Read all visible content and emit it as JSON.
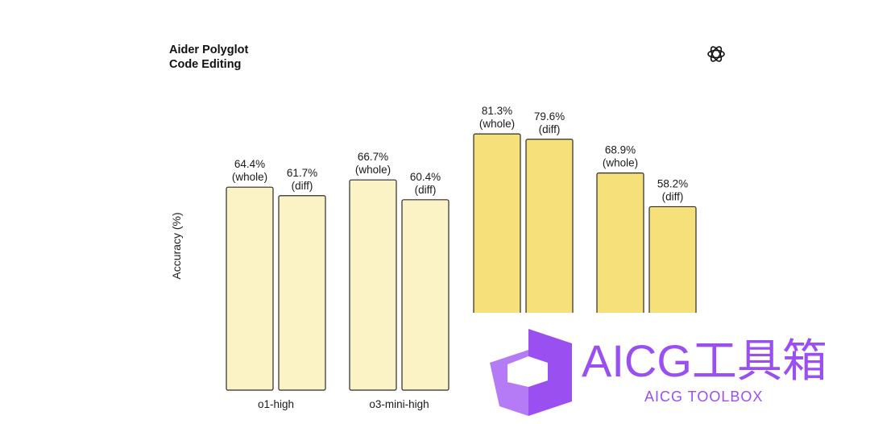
{
  "chart_data": {
    "type": "bar",
    "title": [
      "Aider Polyglot",
      "Code Editing"
    ],
    "ylabel": "Accuracy (%)",
    "ylim": [
      0,
      100
    ],
    "groups": [
      {
        "category": "o1-high",
        "bars": [
          {
            "value": 64.4,
            "label": [
              "64.4%",
              "(whole)"
            ],
            "color": "#fbf3c6"
          },
          {
            "value": 61.7,
            "label": [
              "61.7%",
              "(diff)"
            ],
            "color": "#fbf3c6"
          }
        ]
      },
      {
        "category": "o3-mini-high",
        "bars": [
          {
            "value": 66.7,
            "label": [
              "66.7%",
              "(whole)"
            ],
            "color": "#fbf3c6"
          },
          {
            "value": 60.4,
            "label": [
              "60.4%",
              "(diff)"
            ],
            "color": "#fbf3c6"
          }
        ]
      },
      {
        "category": "",
        "bars": [
          {
            "value": 81.3,
            "label": [
              "81.3%",
              "(whole)"
            ],
            "color": "#f6e07a"
          },
          {
            "value": 79.6,
            "label": [
              "79.6%",
              "(diff)"
            ],
            "color": "#f6e07a"
          }
        ]
      },
      {
        "category": "",
        "bars": [
          {
            "value": 68.9,
            "label": [
              "68.9%",
              "(whole)"
            ],
            "color": "#f6e07a"
          },
          {
            "value": 58.2,
            "label": [
              "58.2%",
              "(diff)"
            ],
            "color": "#f6e07a"
          }
        ]
      }
    ]
  },
  "watermark": {
    "main": "AICG工具箱",
    "sub": "AICG TOOLBOX",
    "color": "#9a4ff0"
  },
  "logo_icon": "openai-logo-icon"
}
